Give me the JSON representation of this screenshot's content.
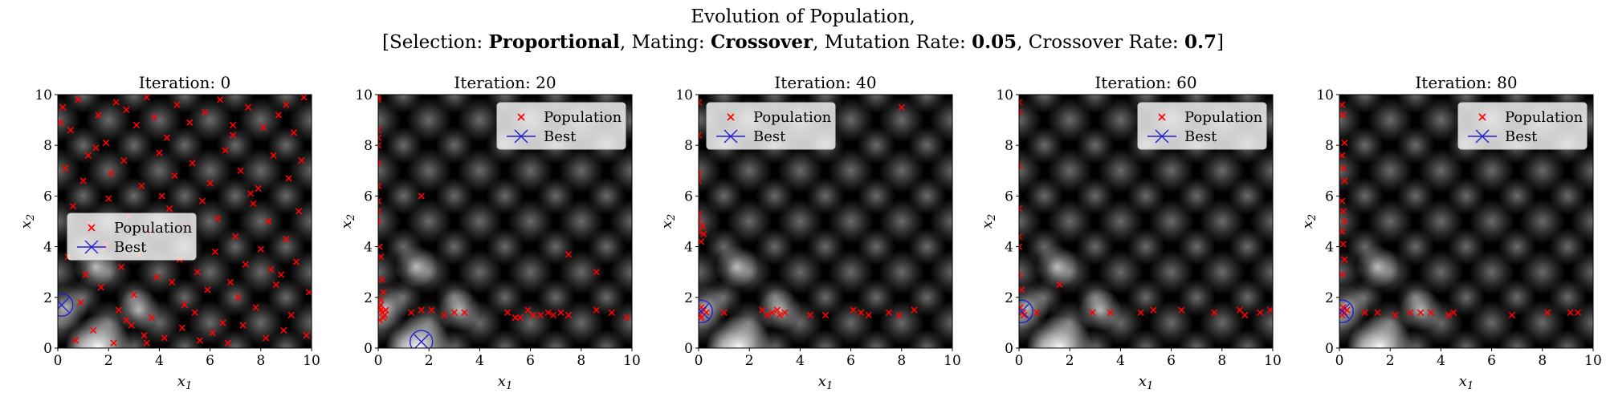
{
  "title": {
    "line1": "Evolution of Population,",
    "sel_label": "[Selection: ",
    "sel_value": "Proportional",
    "mat_label": ", Mating: ",
    "mat_value": "Crossover",
    "mut_label": ", Mutation Rate: ",
    "mut_value": "0.05",
    "cr_label": ", Crossover Rate: ",
    "cr_value": "0.7",
    "close": "]"
  },
  "colors": {
    "population": "#ff0000",
    "best": "#1f1fd0",
    "background": "#000000"
  },
  "chart_data": [
    {
      "type": "scatter",
      "title": "Iteration: 0",
      "xlabel": "x1",
      "ylabel": "x2",
      "xlim": [
        0,
        10
      ],
      "ylim": [
        0,
        10
      ],
      "xticks": [
        0,
        2,
        4,
        6,
        8,
        10
      ],
      "yticks": [
        0,
        2,
        4,
        6,
        8,
        10
      ],
      "legend": {
        "placement": "center-left",
        "entries": [
          "Population",
          "Best"
        ]
      },
      "series": [
        {
          "name": "Population",
          "marker": "x",
          "x": [
            0.2,
            0.5,
            0.8,
            1.2,
            1.6,
            1.9,
            2.3,
            2.7,
            3.1,
            3.5,
            3.8,
            4.3,
            4.7,
            5.2,
            5.8,
            6.4,
            6.9,
            7.5,
            8.1,
            8.7,
            9.3,
            9.7,
            0.3,
            1.0,
            1.5,
            2.1,
            2.6,
            3.3,
            4.0,
            4.6,
            5.3,
            6.0,
            6.6,
            7.2,
            7.9,
            8.5,
            9.1,
            9.6,
            0.6,
            1.3,
            2.0,
            2.8,
            3.6,
            4.4,
            5.1,
            5.7,
            6.3,
            7.0,
            7.7,
            8.3,
            9.0,
            9.5,
            0.4,
            1.1,
            1.8,
            2.5,
            3.2,
            3.9,
            4.8,
            5.5,
            6.2,
            6.8,
            7.4,
            8.0,
            8.8,
            9.4,
            0.9,
            1.7,
            2.4,
            3.0,
            3.7,
            4.5,
            5.0,
            5.9,
            6.5,
            7.1,
            7.8,
            8.6,
            9.2,
            9.9,
            0.7,
            1.4,
            2.2,
            2.9,
            3.4,
            4.2,
            4.9,
            5.6,
            6.1,
            6.7,
            7.3,
            8.2,
            8.9,
            9.8,
            0.1,
            1.9,
            3.5,
            5.4,
            7.6,
            9.0,
            2.7,
            4.1,
            6.9,
            8.4
          ],
          "y": [
            9.5,
            8.6,
            9.8,
            7.6,
            9.2,
            8.1,
            9.7,
            9.4,
            8.8,
            9.9,
            9.1,
            8.3,
            9.6,
            8.9,
            9.3,
            9.8,
            8.4,
            9.5,
            8.7,
            9.2,
            8.5,
            9.9,
            7.1,
            6.6,
            7.9,
            6.9,
            7.4,
            6.4,
            7.7,
            6.8,
            7.3,
            6.5,
            7.8,
            7.0,
            6.3,
            7.6,
            6.7,
            7.4,
            5.6,
            4.9,
            5.9,
            5.2,
            4.6,
            5.5,
            4.8,
            5.8,
            5.1,
            4.4,
            5.7,
            5.0,
            4.3,
            5.4,
            3.6,
            2.9,
            3.9,
            3.2,
            3.7,
            2.8,
            3.5,
            3.0,
            3.8,
            2.6,
            3.3,
            3.9,
            2.9,
            3.4,
            1.8,
            2.4,
            1.5,
            2.1,
            1.2,
            2.6,
            1.7,
            2.3,
            1.0,
            2.0,
            1.6,
            2.5,
            1.3,
            2.2,
            0.3,
            0.7,
            0.2,
            0.9,
            0.5,
            0.4,
            0.8,
            0.3,
            0.6,
            0.2,
            0.9,
            0.4,
            0.7,
            0.5,
            8.9,
            4.1,
            0.2,
            1.4,
            6.1,
            9.6,
            1.1,
            6.0,
            8.8,
            3.1
          ]
        },
        {
          "name": "Best",
          "marker": "x-circle",
          "x": [
            0.15
          ],
          "y": [
            1.7
          ]
        }
      ]
    },
    {
      "type": "scatter",
      "title": "Iteration: 20",
      "xlabel": "x1",
      "ylabel": "x2",
      "xlim": [
        0,
        10
      ],
      "ylim": [
        0,
        10
      ],
      "xticks": [
        0,
        2,
        4,
        6,
        8,
        10
      ],
      "yticks": [
        0,
        2,
        4,
        6,
        8,
        10
      ],
      "legend": {
        "placement": "upper-right",
        "entries": [
          "Population",
          "Best"
        ]
      },
      "series": [
        {
          "name": "Population",
          "marker": "x",
          "x": [
            0.0,
            0.0,
            0.0,
            0.0,
            0.0,
            0.0,
            0.0,
            0.0,
            0.0,
            0.0,
            0.05,
            0.1,
            0.15,
            0.2,
            0.1,
            0.05,
            0.15,
            0.2,
            0.1,
            0.25,
            0.1,
            0.05,
            0.3,
            1.3,
            1.7,
            2.1,
            2.6,
            3.0,
            3.4,
            5.1,
            5.4,
            5.6,
            5.9,
            6.1,
            6.4,
            6.7,
            6.9,
            7.2,
            7.5,
            8.6,
            9.2,
            9.8,
            1.7,
            7.5,
            8.6
          ],
          "y": [
            9.9,
            9.8,
            8.6,
            8.3,
            8.0,
            7.3,
            6.4,
            5.8,
            5.4,
            5.0,
            4.0,
            3.6,
            2.7,
            2.2,
            1.9,
            1.6,
            1.4,
            1.2,
            1.5,
            1.3,
            1.7,
            1.1,
            1.5,
            1.4,
            1.5,
            1.5,
            1.3,
            1.4,
            1.4,
            1.4,
            1.2,
            1.2,
            1.5,
            1.3,
            1.3,
            1.4,
            1.3,
            1.4,
            1.3,
            1.5,
            1.4,
            1.2,
            6.0,
            3.7,
            3.0
          ]
        },
        {
          "name": "Best",
          "marker": "x-circle",
          "x": [
            1.7
          ],
          "y": [
            0.25
          ]
        }
      ]
    },
    {
      "type": "scatter",
      "title": "Iteration: 40",
      "xlabel": "x1",
      "ylabel": "x2",
      "xlim": [
        0,
        10
      ],
      "ylim": [
        0,
        10
      ],
      "xticks": [
        0,
        2,
        4,
        6,
        8,
        10
      ],
      "yticks": [
        0,
        2,
        4,
        6,
        8,
        10
      ],
      "legend": {
        "placement": "upper-left",
        "entries": [
          "Population",
          "Best"
        ]
      },
      "series": [
        {
          "name": "Population",
          "marker": "x",
          "x": [
            0.0,
            0.0,
            0.0,
            0.0,
            0.0,
            0.0,
            0.0,
            0.1,
            0.15,
            0.2,
            0.1,
            0.05,
            0.2,
            0.3,
            0.1,
            1.0,
            2.5,
            2.7,
            2.9,
            3.1,
            3.2,
            3.4,
            4.4,
            5.0,
            6.1,
            6.4,
            6.7,
            7.5,
            7.9,
            8.5,
            8.0
          ],
          "y": [
            9.7,
            8.4,
            6.9,
            6.6,
            5.3,
            5.0,
            4.6,
            4.2,
            4.8,
            4.5,
            1.6,
            1.3,
            1.5,
            1.4,
            1.2,
            1.4,
            1.5,
            1.3,
            1.4,
            1.5,
            1.3,
            1.4,
            1.3,
            1.3,
            1.5,
            1.4,
            1.3,
            1.4,
            1.3,
            1.5,
            9.5
          ]
        },
        {
          "name": "Best",
          "marker": "x-circle",
          "x": [
            0.1
          ],
          "y": [
            1.45
          ]
        }
      ]
    },
    {
      "type": "scatter",
      "title": "Iteration: 60",
      "xlabel": "x1",
      "ylabel": "x2",
      "xlim": [
        0,
        10
      ],
      "ylim": [
        0,
        10
      ],
      "xticks": [
        0,
        2,
        4,
        6,
        8,
        10
      ],
      "yticks": [
        0,
        2,
        4,
        6,
        8,
        10
      ],
      "legend": {
        "placement": "upper-right",
        "entries": [
          "Population",
          "Best"
        ]
      },
      "series": [
        {
          "name": "Population",
          "marker": "x",
          "x": [
            0.0,
            0.0,
            0.0,
            0.0,
            0.0,
            0.0,
            0.0,
            0.1,
            0.05,
            0.15,
            0.2,
            0.7,
            1.6,
            2.9,
            3.6,
            4.8,
            5.3,
            6.4,
            7.7,
            8.7,
            8.9,
            9.5,
            9.9
          ],
          "y": [
            9.7,
            9.3,
            7.2,
            5.5,
            4.4,
            4.0,
            2.9,
            2.3,
            1.6,
            1.4,
            1.3,
            1.4,
            2.5,
            1.4,
            1.4,
            1.4,
            1.5,
            1.5,
            1.4,
            1.5,
            1.3,
            1.4,
            1.5
          ]
        },
        {
          "name": "Best",
          "marker": "x-circle",
          "x": [
            0.1
          ],
          "y": [
            1.45
          ]
        }
      ]
    },
    {
      "type": "scatter",
      "title": "Iteration: 80",
      "xlabel": "x1",
      "ylabel": "x2",
      "xlim": [
        0,
        10
      ],
      "ylim": [
        0,
        10
      ],
      "xticks": [
        0,
        2,
        4,
        6,
        8,
        10
      ],
      "yticks": [
        0,
        2,
        4,
        6,
        8,
        10
      ],
      "legend": {
        "placement": "upper-right",
        "entries": [
          "Population",
          "Best"
        ]
      },
      "series": [
        {
          "name": "Population",
          "marker": "x",
          "x": [
            0.1,
            0.15,
            0.2,
            0.1,
            0.15,
            0.2,
            0.1,
            0.15,
            0.2,
            0.1,
            0.15,
            0.2,
            0.1,
            0.05,
            0.2,
            0.1,
            0.15,
            0.2,
            0.3,
            1.0,
            1.5,
            2.2,
            2.8,
            3.2,
            3.6,
            4.3,
            4.5,
            6.8,
            8.2,
            9.1,
            9.4
          ],
          "y": [
            9.6,
            9.2,
            8.1,
            7.6,
            7.1,
            6.6,
            5.8,
            5.4,
            5.0,
            4.6,
            4.1,
            3.5,
            2.9,
            1.5,
            1.4,
            1.3,
            1.6,
            1.4,
            1.5,
            1.4,
            1.4,
            1.3,
            1.4,
            1.4,
            1.4,
            1.3,
            1.4,
            1.3,
            1.4,
            1.4,
            1.4
          ]
        },
        {
          "name": "Best",
          "marker": "x-circle",
          "x": [
            0.1
          ],
          "y": [
            1.45
          ]
        }
      ]
    }
  ]
}
